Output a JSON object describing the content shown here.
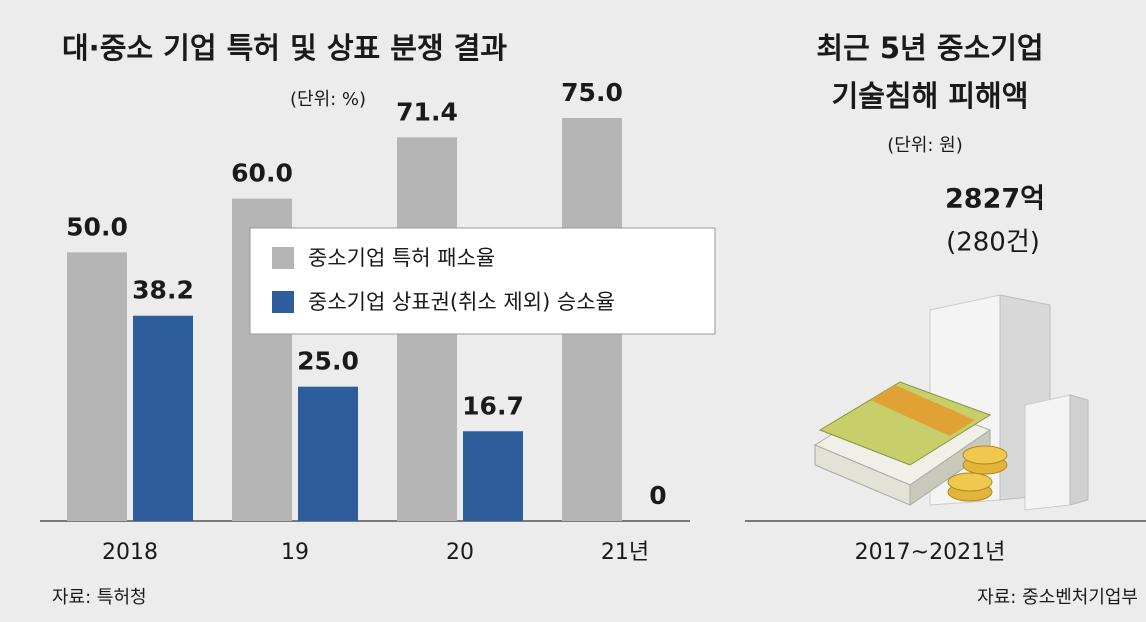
{
  "chart_data": {
    "type": "bar",
    "title": "대·중소 기업 특허 및 상표 분쟁 결과",
    "unit": "(단위: %)",
    "categories": [
      "2018",
      "19",
      "20",
      "21년"
    ],
    "series": [
      {
        "name": "중소기업 특허 패소율",
        "color": "#b5b5b5",
        "values": [
          50,
          60,
          71.4,
          75
        ],
        "value_labels": [
          "50.0",
          "60.0",
          "71.4",
          "75.0"
        ]
      },
      {
        "name": "중소기업 상표권(취소 제외) 승소율",
        "color": "#2e5d9b",
        "values": [
          38.2,
          25,
          16.7,
          0
        ],
        "value_labels": [
          "38.2",
          "25.0",
          "16.7",
          "0"
        ]
      }
    ],
    "source": "자료: 특허청"
  },
  "damage_panel": {
    "title": [
      "최근 5년 중소기업",
      "기술침해 피해액"
    ],
    "unit": "(단위: 원)",
    "amount": "2827억",
    "count": "(280건)",
    "period": "2017~2021년",
    "source": "자료: 중소벤처기업부"
  }
}
